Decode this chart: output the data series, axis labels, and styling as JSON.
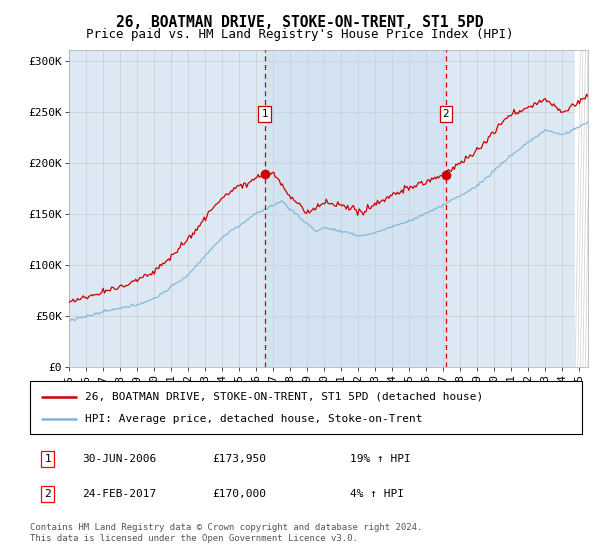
{
  "title": "26, BOATMAN DRIVE, STOKE-ON-TRENT, ST1 5PD",
  "subtitle": "Price paid vs. HM Land Registry's House Price Index (HPI)",
  "ylabel_ticks": [
    "£0",
    "£50K",
    "£100K",
    "£150K",
    "£200K",
    "£250K",
    "£300K"
  ],
  "ytick_values": [
    0,
    50000,
    100000,
    150000,
    200000,
    250000,
    300000
  ],
  "ylim": [
    0,
    310000
  ],
  "xlim_start": 1995.0,
  "xlim_end": 2025.5,
  "plot_bg_color": "#dce9f5",
  "highlight_color": "#c8daef",
  "hpi_color": "#7fb3d9",
  "price_color": "#cc0000",
  "dashed_line_color": "#cc0000",
  "marker1_date": 2006.5,
  "marker2_date": 2017.15,
  "marker1_price": 173950,
  "marker2_price": 170000,
  "legend_house_label": "26, BOATMAN DRIVE, STOKE-ON-TRENT, ST1 5PD (detached house)",
  "legend_hpi_label": "HPI: Average price, detached house, Stoke-on-Trent",
  "table_row1": [
    "1",
    "30-JUN-2006",
    "£173,950",
    "19% ↑ HPI"
  ],
  "table_row2": [
    "2",
    "24-FEB-2017",
    "£170,000",
    "4% ↑ HPI"
  ],
  "footer": "Contains HM Land Registry data © Crown copyright and database right 2024.\nThis data is licensed under the Open Government Licence v3.0.",
  "title_fontsize": 10.5,
  "subtitle_fontsize": 9,
  "tick_fontsize": 8,
  "legend_fontsize": 8,
  "table_fontsize": 8,
  "footer_fontsize": 6.5
}
